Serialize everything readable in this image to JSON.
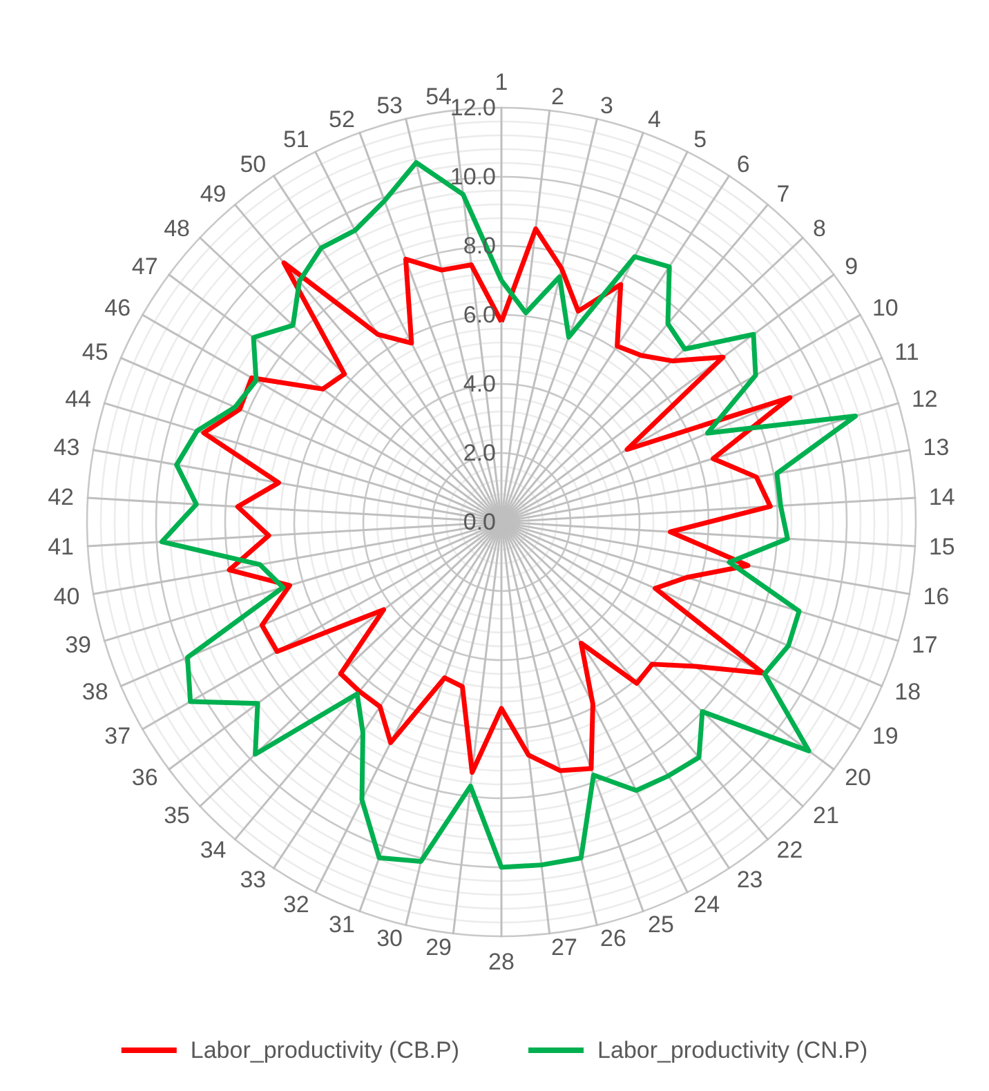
{
  "chart_data": {
    "type": "radar",
    "categories": [
      "1",
      "2",
      "3",
      "4",
      "5",
      "6",
      "7",
      "8",
      "9",
      "10",
      "11",
      "12",
      "13",
      "14",
      "15",
      "16",
      "17",
      "18",
      "19",
      "20",
      "21",
      "22",
      "23",
      "24",
      "25",
      "26",
      "27",
      "28",
      "29",
      "30",
      "31",
      "32",
      "33",
      "34",
      "35",
      "36",
      "37",
      "38",
      "39",
      "40",
      "41",
      "42",
      "43",
      "44",
      "45",
      "46",
      "47",
      "48",
      "49",
      "50",
      "51",
      "52",
      "53",
      "54"
    ],
    "series": [
      {
        "name": "Labor_productivity (CB.P)",
        "color": "#ff0000",
        "values": [
          5.8,
          8.55,
          7.55,
          6.5,
          7.7,
          6.1,
          6.3,
          6.8,
          8.0,
          4.2,
          9.1,
          6.4,
          7.5,
          7.8,
          4.9,
          7.25,
          5.6,
          4.85,
          8.75,
          7.0,
          6.0,
          6.1,
          4.2,
          5.9,
          7.6,
          7.4,
          6.8,
          5.4,
          7.3,
          4.9,
          4.8,
          7.15,
          6.4,
          6.4,
          6.4,
          4.25,
          7.5,
          7.55,
          6.4,
          8.0,
          6.75,
          7.65,
          6.55,
          9.0,
          8.25,
          8.35,
          6.45,
          6.25,
          9.8,
          6.5,
          5.8,
          8.1,
          7.5,
          7.5
        ]
      },
      {
        "name": "Labor_productivity (CN.P)",
        "color": "#00b050",
        "values": [
          7.0,
          6.1,
          7.3,
          5.7,
          8.6,
          8.85,
          7.5,
          7.3,
          9.1,
          8.5,
          6.5,
          10.7,
          8.1,
          8.1,
          8.3,
          6.7,
          9.0,
          9.05,
          8.8,
          11.1,
          8.0,
          8.9,
          8.8,
          8.7,
          7.8,
          10.0,
          10.0,
          10.0,
          7.7,
          10.1,
          10.35,
          9.0,
          7.3,
          6.5,
          9.8,
          8.8,
          10.4,
          9.9,
          6.6,
          7.1,
          9.85,
          8.85,
          9.55,
          9.2,
          8.4,
          8.2,
          8.95,
          8.3,
          9.1,
          9.5,
          9.45,
          9.9,
          10.7,
          9.55
        ]
      }
    ],
    "ylim": [
      0,
      12
    ],
    "yticks": [
      {
        "value": 0,
        "label": "0.0"
      },
      {
        "value": 2,
        "label": "2.0"
      },
      {
        "value": 4,
        "label": "4.0"
      },
      {
        "value": 6,
        "label": "6.0"
      },
      {
        "value": 8,
        "label": "8.0"
      },
      {
        "value": 10,
        "label": "10.0"
      },
      {
        "value": 12,
        "label": "12.0"
      }
    ],
    "grid": true,
    "legend": "bottom",
    "line_style": "solid",
    "marker": "none"
  }
}
